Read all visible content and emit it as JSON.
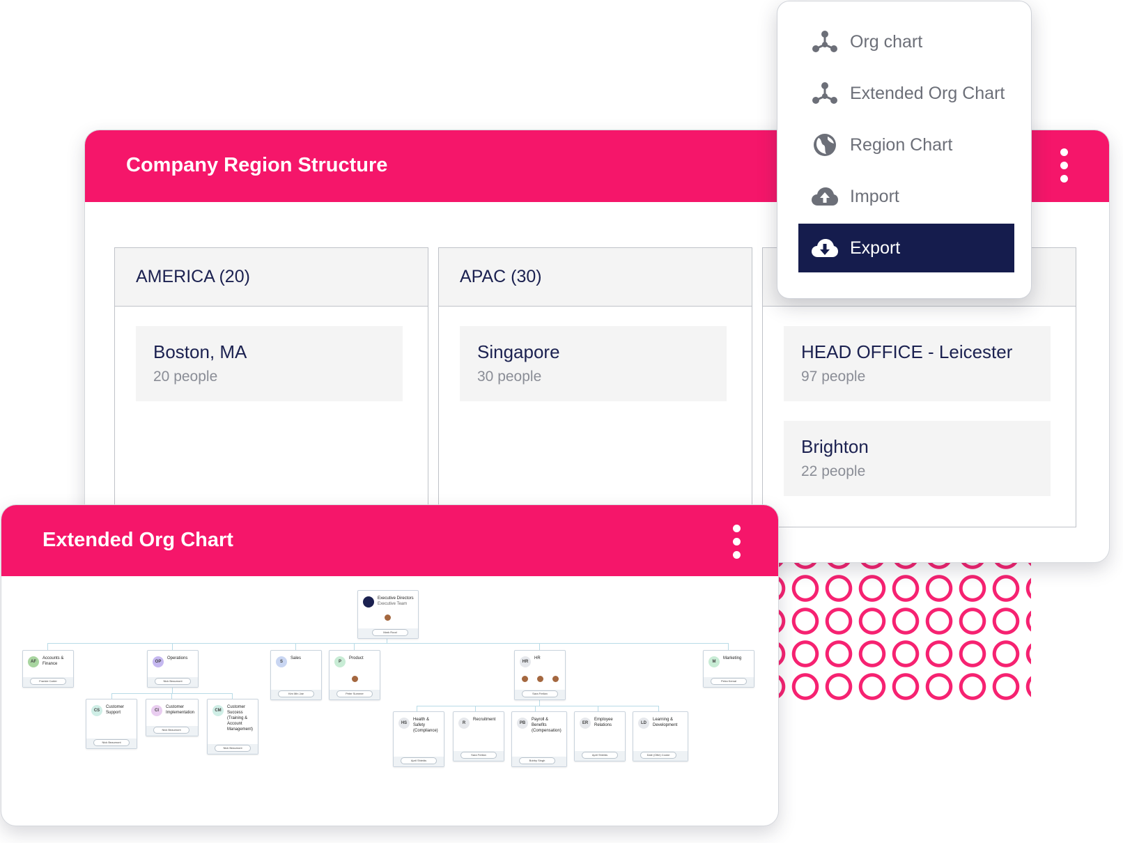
{
  "menu": {
    "items": [
      {
        "label": "Org chart",
        "icon": "org-chart-icon",
        "active": false
      },
      {
        "label": "Extended Org Chart",
        "icon": "extended-org-chart-icon",
        "active": false
      },
      {
        "label": "Region Chart",
        "icon": "globe-icon",
        "active": false
      },
      {
        "label": "Import",
        "icon": "cloud-upload-icon",
        "active": false
      },
      {
        "label": "Export",
        "icon": "cloud-download-icon",
        "active": true
      }
    ]
  },
  "region_card": {
    "title": "Company Region Structure",
    "columns": [
      {
        "header": "AMERICA (20)",
        "locations": [
          {
            "name": "Boston, MA",
            "count": "20 people"
          }
        ]
      },
      {
        "header": "APAC (30)",
        "locations": [
          {
            "name": "Singapore",
            "count": "30 people"
          }
        ]
      },
      {
        "header": "",
        "locations": [
          {
            "name": "HEAD OFFICE - Leicester",
            "count": "97 people"
          },
          {
            "name": "Brighton",
            "count": "22 people"
          }
        ]
      }
    ]
  },
  "org_card": {
    "title": "Extended Org Chart",
    "nodes": {
      "exec": {
        "title": "Executive Directors",
        "subtitle": "Executive Team",
        "person": "Mark Rood"
      },
      "accounts": {
        "title": "Accounts & Finance",
        "badge": "AF",
        "person": "Frankie Carter"
      },
      "operations": {
        "title": "Operations",
        "badge": "OP",
        "person": "Nick Beaumont"
      },
      "sales": {
        "title": "Sales",
        "badge": "S",
        "person": "Kim Min Jae"
      },
      "product": {
        "title": "Product",
        "badge": "P",
        "person": "Peter Summer"
      },
      "hr": {
        "title": "HR",
        "badge": "HR",
        "person": "Sara Frellan"
      },
      "marketing": {
        "title": "Marketing",
        "badge": "M",
        "person": "Petra Kemal"
      },
      "cs": {
        "title": "Customer Support",
        "badge": "CS",
        "person": "Nick Beaumont"
      },
      "ci": {
        "title": "Customer Implementation",
        "badge": "CI",
        "person": "Nick Beaumont"
      },
      "cm": {
        "title": "Customer Success (Training & Account Management)",
        "badge": "CM",
        "person": "Nick Beaumont"
      },
      "hs": {
        "title": "Health & Safety (Compliance)",
        "badge": "HS",
        "person": "April Shields"
      },
      "rec": {
        "title": "Recruitment",
        "badge": "R",
        "person": "Sara Frellan"
      },
      "pay": {
        "title": "Payroll & Benefits (Compensation)",
        "badge": "PB",
        "person": "Bobby Singh"
      },
      "er": {
        "title": "Employee Relations",
        "badge": "ER",
        "person": "April Shields"
      },
      "ld": {
        "title": "Learning & Development",
        "badge": "LD",
        "person": "Dale (Ollie) Cooke"
      }
    }
  },
  "colors": {
    "accent": "#f5166a",
    "navy": "#151c4d"
  }
}
